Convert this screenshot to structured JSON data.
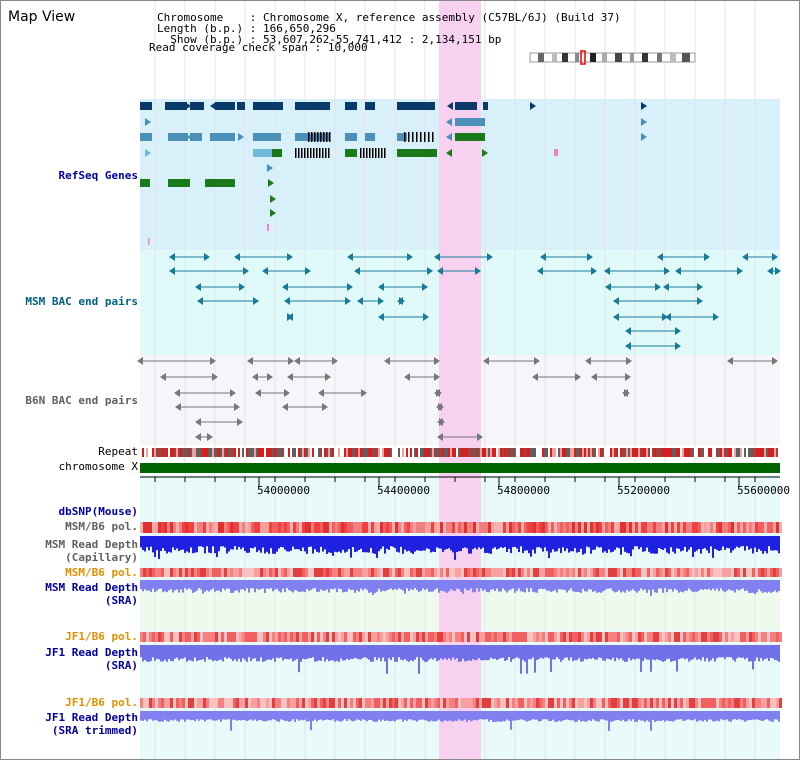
{
  "page_title": "Map View",
  "header": {
    "chromosome_key": "Chromosome",
    "chromosome_value": "Chromosome X, reference assembly (C57BL/6J) (Build 37)",
    "length_key": "Length (b.p.)",
    "length_value": "166,650,296",
    "show_key": "Show (b.p.)",
    "show_value": "53,607,262-55,741,412 : 2,134,151 bp",
    "coverage_key": "Read coverage check span",
    "coverage_value": "10,000"
  },
  "tracks": {
    "refseq": "RefSeq Genes",
    "msm_bac": "MSM BAC end pairs",
    "b6n_bac": "B6N BAC end pairs",
    "repeat": "Repeat",
    "chromosome": "chromosome X",
    "dbsnp": "dbSNP(Mouse)",
    "msm_pol1": "MSM/B6 pol.",
    "msm_depth_cap_1": "MSM Read Depth",
    "msm_depth_cap_2": "(Capillary)",
    "msm_pol2": "MSM/B6 pol.",
    "msm_depth_sra_1": "MSM Read Depth",
    "msm_depth_sra_2": "(SRA)",
    "jf1_pol1": "JF1/B6 pol.",
    "jf1_depth_sra_1": "JF1 Read Depth",
    "jf1_depth_sra_2": "(SRA)",
    "jf1_pol2": "JF1/B6 pol.",
    "jf1_depth_trim_1": "JF1 Read Depth",
    "jf1_depth_trim_2": "(SRA trimmed)"
  },
  "axis": {
    "ticks": [
      "54000000",
      "54400000",
      "54800000",
      "55200000",
      "55600000"
    ]
  },
  "colors": {
    "refseq_bg": "#d8f0fa",
    "msm_bg": "#e0fafa",
    "b6n_bg": "#f6f6fa",
    "highlight": "#f8d0f0",
    "refseq_label": "#0000a0",
    "msm_label": "#006080",
    "b6n_label": "#606060",
    "pol_msm_label": "#606060",
    "pol_orange": "#e09000",
    "depth_label": "#0000a0",
    "chromosome_bar": "#006400"
  }
}
